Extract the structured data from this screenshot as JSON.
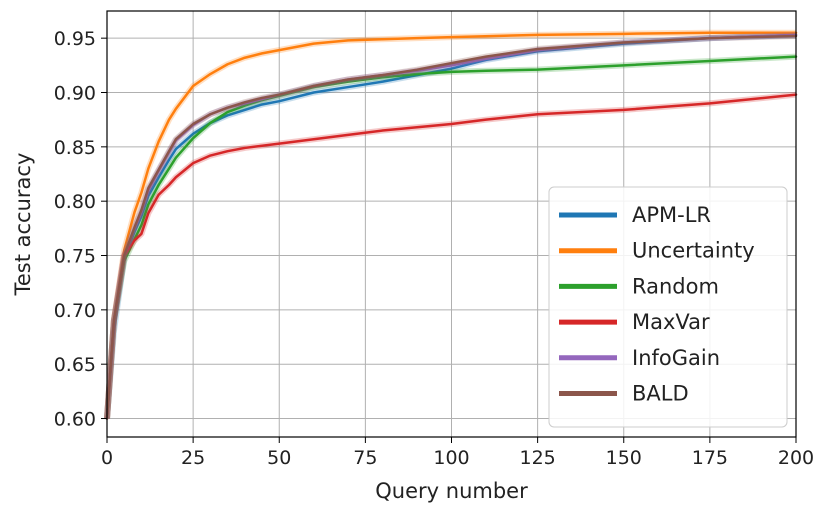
{
  "chart_data": {
    "type": "line",
    "title": "",
    "xlabel": "Query number",
    "ylabel": "Test accuracy",
    "xlim": [
      0,
      200
    ],
    "ylim": [
      0.583,
      0.975
    ],
    "xticks": [
      0,
      25,
      50,
      75,
      100,
      125,
      150,
      175,
      200
    ],
    "yticks": [
      0.6,
      0.65,
      0.7,
      0.75,
      0.8,
      0.85,
      0.9,
      0.95
    ],
    "xtick_labels": [
      "0",
      "25",
      "50",
      "75",
      "100",
      "125",
      "150",
      "175",
      "200"
    ],
    "ytick_labels": [
      "0.60",
      "0.65",
      "0.70",
      "0.75",
      "0.80",
      "0.85",
      "0.90",
      "0.95"
    ],
    "grid": true,
    "legend_position": "lower-right",
    "series": [
      {
        "name": "APM-LR",
        "color": "#1f77b4",
        "x": [
          0,
          2,
          5,
          8,
          10,
          12,
          15,
          18,
          20,
          25,
          30,
          35,
          40,
          45,
          50,
          60,
          70,
          80,
          90,
          100,
          110,
          125,
          150,
          175,
          200
        ],
        "y": [
          0.6,
          0.68,
          0.748,
          0.772,
          0.786,
          0.805,
          0.822,
          0.838,
          0.848,
          0.862,
          0.872,
          0.879,
          0.884,
          0.889,
          0.892,
          0.9,
          0.905,
          0.91,
          0.916,
          0.922,
          0.93,
          0.938,
          0.945,
          0.95,
          0.953
        ]
      },
      {
        "name": "Uncertainty",
        "color": "#ff7f0e",
        "x": [
          0,
          2,
          5,
          8,
          10,
          12,
          15,
          18,
          20,
          25,
          30,
          35,
          40,
          45,
          50,
          60,
          70,
          80,
          90,
          100,
          125,
          150,
          175,
          200
        ],
        "y": [
          0.6,
          0.69,
          0.755,
          0.79,
          0.808,
          0.83,
          0.855,
          0.875,
          0.885,
          0.906,
          0.917,
          0.926,
          0.932,
          0.936,
          0.939,
          0.945,
          0.948,
          0.949,
          0.95,
          0.951,
          0.953,
          0.954,
          0.955,
          0.955
        ]
      },
      {
        "name": "Random",
        "color": "#2ca02c",
        "x": [
          0,
          2,
          5,
          8,
          10,
          12,
          15,
          18,
          20,
          25,
          30,
          35,
          40,
          45,
          50,
          60,
          70,
          80,
          90,
          100,
          110,
          125,
          150,
          175,
          200
        ],
        "y": [
          0.6,
          0.69,
          0.745,
          0.765,
          0.778,
          0.797,
          0.815,
          0.83,
          0.84,
          0.858,
          0.872,
          0.882,
          0.888,
          0.893,
          0.897,
          0.905,
          0.91,
          0.914,
          0.917,
          0.919,
          0.92,
          0.921,
          0.925,
          0.929,
          0.933
        ]
      },
      {
        "name": "MaxVar",
        "color": "#d62728",
        "x": [
          0,
          2,
          5,
          8,
          10,
          12,
          15,
          18,
          20,
          25,
          30,
          35,
          40,
          50,
          60,
          70,
          80,
          90,
          100,
          110,
          125,
          150,
          175,
          200
        ],
        "y": [
          0.6,
          0.69,
          0.75,
          0.764,
          0.77,
          0.789,
          0.806,
          0.815,
          0.822,
          0.835,
          0.842,
          0.846,
          0.849,
          0.853,
          0.857,
          0.861,
          0.865,
          0.868,
          0.871,
          0.875,
          0.88,
          0.884,
          0.89,
          0.898
        ]
      },
      {
        "name": "InfoGain",
        "color": "#9467bd",
        "x": [
          0,
          2,
          5,
          8,
          10,
          12,
          15,
          18,
          20,
          25,
          30,
          35,
          40,
          45,
          50,
          60,
          70,
          80,
          90,
          100,
          110,
          125,
          150,
          175,
          200
        ],
        "y": [
          0.6,
          0.69,
          0.75,
          0.775,
          0.79,
          0.81,
          0.828,
          0.845,
          0.856,
          0.87,
          0.88,
          0.886,
          0.89,
          0.894,
          0.898,
          0.906,
          0.912,
          0.916,
          0.92,
          0.925,
          0.931,
          0.939,
          0.946,
          0.95,
          0.953
        ]
      },
      {
        "name": "BALD",
        "color": "#8c564b",
        "x": [
          0,
          2,
          5,
          8,
          10,
          12,
          15,
          18,
          20,
          25,
          30,
          35,
          40,
          45,
          50,
          60,
          70,
          80,
          90,
          100,
          110,
          125,
          150,
          175,
          200
        ],
        "y": [
          0.6,
          0.69,
          0.75,
          0.776,
          0.792,
          0.812,
          0.829,
          0.846,
          0.857,
          0.871,
          0.88,
          0.886,
          0.891,
          0.895,
          0.898,
          0.906,
          0.912,
          0.916,
          0.921,
          0.927,
          0.933,
          0.94,
          0.946,
          0.95,
          0.952
        ]
      }
    ]
  }
}
